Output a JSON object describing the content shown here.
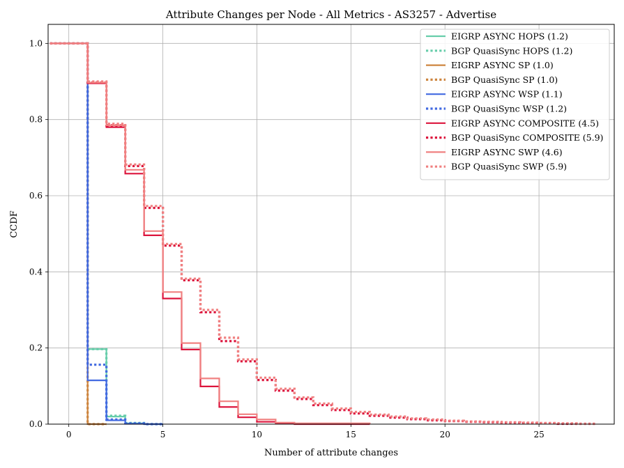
{
  "chart_data": {
    "type": "line",
    "step": true,
    "title": "Attribute Changes per Node - All Metrics - AS3257 - Advertise",
    "xlabel": "Number of attribute changes",
    "ylabel": "CCDF",
    "xlim": [
      -1.1,
      29
    ],
    "ylim": [
      0,
      1.05
    ],
    "xticks": [
      0,
      5,
      10,
      15,
      20,
      25
    ],
    "yticks": [
      0.0,
      0.2,
      0.4,
      0.6,
      0.8,
      1.0
    ],
    "grid": true,
    "legend_position": "top-right",
    "series": [
      {
        "name": "EIGRP ASYNC HOPS (1.2)",
        "color": "#66cdaa",
        "style": "solid",
        "x": [
          -1,
          1,
          2,
          3,
          4,
          5
        ],
        "y": [
          1.0,
          0.197,
          0.02,
          0.002,
          0.0,
          0.0
        ]
      },
      {
        "name": "BGP QuasiSync HOPS (1.2)",
        "color": "#66cdaa",
        "style": "dotted",
        "x": [
          -1,
          1,
          2,
          3,
          4,
          5
        ],
        "y": [
          1.0,
          0.197,
          0.022,
          0.003,
          0.0,
          0.0
        ]
      },
      {
        "name": "EIGRP ASYNC SP (1.0)",
        "color": "#cd853f",
        "style": "solid",
        "x": [
          -1,
          1,
          2
        ],
        "y": [
          1.0,
          0.0,
          0.0
        ]
      },
      {
        "name": "BGP QuasiSync SP (1.0)",
        "color": "#cd853f",
        "style": "dotted",
        "x": [
          -1,
          1,
          2
        ],
        "y": [
          1.0,
          0.0,
          0.0
        ]
      },
      {
        "name": "EIGRP ASYNC WSP (1.1)",
        "color": "#4169e1",
        "style": "solid",
        "x": [
          -1,
          1,
          2,
          3,
          4,
          5
        ],
        "y": [
          1.0,
          0.115,
          0.01,
          0.001,
          0.0,
          0.0
        ]
      },
      {
        "name": "BGP QuasiSync WSP (1.2)",
        "color": "#4169e1",
        "style": "dotted",
        "x": [
          -1,
          1,
          2,
          3,
          4,
          5
        ],
        "y": [
          1.0,
          0.156,
          0.012,
          0.002,
          0.0,
          0.0
        ]
      },
      {
        "name": "EIGRP ASYNC COMPOSITE (4.5)",
        "color": "#dc143c",
        "style": "solid",
        "x": [
          -1,
          1,
          2,
          3,
          4,
          5,
          6,
          7,
          8,
          9,
          10,
          11,
          12,
          16
        ],
        "y": [
          1.0,
          0.895,
          0.78,
          0.658,
          0.496,
          0.33,
          0.196,
          0.099,
          0.045,
          0.018,
          0.006,
          0.002,
          0.0,
          0.0
        ]
      },
      {
        "name": "BGP QuasiSync COMPOSITE (5.9)",
        "color": "#dc143c",
        "style": "dotted",
        "x": [
          -1,
          1,
          2,
          3,
          4,
          5,
          6,
          7,
          8,
          9,
          10,
          11,
          12,
          13,
          14,
          15,
          16,
          17,
          18,
          19,
          20,
          21,
          22,
          23,
          24,
          25,
          26,
          27,
          28
        ],
        "y": [
          1.0,
          0.897,
          0.785,
          0.678,
          0.568,
          0.469,
          0.378,
          0.294,
          0.218,
          0.165,
          0.116,
          0.088,
          0.066,
          0.05,
          0.037,
          0.028,
          0.022,
          0.017,
          0.013,
          0.01,
          0.008,
          0.006,
          0.005,
          0.004,
          0.003,
          0.002,
          0.001,
          0.001,
          0.001
        ]
      },
      {
        "name": "EIGRP ASYNC SWP (4.6)",
        "color": "#f08080",
        "style": "solid",
        "x": [
          -1,
          1,
          2,
          3,
          4,
          5,
          6,
          7,
          8,
          9,
          10,
          11,
          12,
          16
        ],
        "y": [
          1.0,
          0.897,
          0.785,
          0.668,
          0.507,
          0.347,
          0.213,
          0.12,
          0.06,
          0.026,
          0.012,
          0.004,
          0.002,
          0.0
        ]
      },
      {
        "name": "BGP QuasiSync SWP (5.9)",
        "color": "#f08080",
        "style": "dotted",
        "x": [
          -1,
          1,
          2,
          3,
          4,
          5,
          6,
          7,
          8,
          9,
          10,
          11,
          12,
          13,
          14,
          15,
          16,
          17,
          18,
          19,
          20,
          21,
          22,
          23,
          24,
          25,
          26,
          27,
          28
        ],
        "y": [
          1.0,
          0.9,
          0.789,
          0.682,
          0.573,
          0.473,
          0.382,
          0.3,
          0.227,
          0.17,
          0.122,
          0.093,
          0.07,
          0.054,
          0.041,
          0.032,
          0.025,
          0.02,
          0.015,
          0.012,
          0.009,
          0.007,
          0.006,
          0.005,
          0.004,
          0.003,
          0.002,
          0.001,
          0.001
        ]
      }
    ]
  }
}
